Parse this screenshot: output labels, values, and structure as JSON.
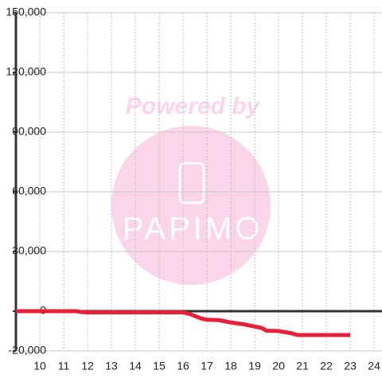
{
  "chart_data": {
    "type": "line",
    "watermark": {
      "line1": "Powered by",
      "line2": "PAPIMO"
    },
    "x": [
      9,
      11.5,
      11.8,
      12,
      16,
      16.3,
      16.5,
      16.8,
      17,
      17.5,
      18,
      18.5,
      19,
      19.3,
      19.5,
      20,
      20.5,
      20.8,
      23
    ],
    "series": [
      {
        "color": "#e8213a",
        "values": [
          0,
          0,
          -500,
          -600,
          -600,
          -1500,
          -2500,
          -3800,
          -4300,
          -4500,
          -5700,
          -6500,
          -7700,
          -8500,
          -9800,
          -10000,
          -11000,
          -12000,
          -12000
        ]
      }
    ],
    "xlim": [
      9,
      24.33
    ],
    "xticks": [
      10,
      11,
      12,
      13,
      14,
      15,
      16,
      17,
      18,
      19,
      20,
      21,
      22,
      23,
      24
    ],
    "ylim": [
      -20000,
      150000
    ],
    "yticks": [
      {
        "value": -20000,
        "label": "-20,000"
      },
      0,
      {
        "value": 30000,
        "label": "30,000"
      },
      {
        "value": 60000,
        "label": "60,000"
      },
      {
        "value": 90000,
        "label": "90,000"
      },
      {
        "value": 120000,
        "label": "120,000"
      },
      {
        "value": 150000,
        "label": "150,000"
      }
    ],
    "grid": true
  }
}
